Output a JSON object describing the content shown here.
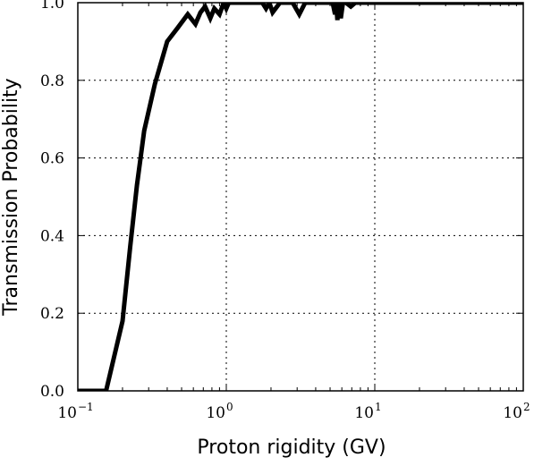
{
  "chart_data": {
    "type": "line",
    "title": "",
    "xlabel": "Proton rigidity (GV)",
    "ylabel": "Transmission Probability",
    "xscale": "log",
    "xlim": [
      0.1,
      100
    ],
    "ylim": [
      0.0,
      1.0
    ],
    "grid": true,
    "grid_style": "dotted",
    "line_color": "#000000",
    "x_ticks": [
      {
        "base": "10",
        "exp": "−1",
        "value": 0.1
      },
      {
        "base": "10",
        "exp": "0",
        "value": 1
      },
      {
        "base": "10",
        "exp": "1",
        "value": 10
      },
      {
        "base": "10",
        "exp": "2",
        "value": 100
      }
    ],
    "y_ticks": [
      "0.0",
      "0.2",
      "0.4",
      "0.6",
      "0.8",
      "1.0"
    ],
    "y_tick_values": [
      0.0,
      0.2,
      0.4,
      0.6,
      0.8,
      1.0
    ],
    "series": [
      {
        "x": [
          0.1,
          0.155,
          0.2,
          0.225,
          0.25,
          0.28,
          0.33,
          0.4,
          0.47,
          0.55,
          0.62,
          0.67,
          0.72,
          0.78,
          0.83,
          0.9,
          0.96,
          1.0,
          1.04,
          1.1,
          1.2,
          1.3,
          1.5,
          1.75,
          1.85,
          1.95,
          2.05,
          2.3,
          2.8,
          3.1,
          3.4,
          4.0,
          4.6,
          5.2,
          5.4,
          5.5,
          5.6,
          5.7,
          5.9,
          6.1,
          6.4,
          6.9,
          7.4,
          8.2,
          10,
          15,
          25,
          40,
          60,
          100
        ],
        "y": [
          0.0,
          0.0,
          0.18,
          0.37,
          0.53,
          0.67,
          0.79,
          0.9,
          0.935,
          0.97,
          0.945,
          0.975,
          0.99,
          0.96,
          0.985,
          0.97,
          1.0,
          0.985,
          1.0,
          1.0,
          1.0,
          1.0,
          1.0,
          1.0,
          0.985,
          1.0,
          0.975,
          1.0,
          1.0,
          0.97,
          1.0,
          1.0,
          1.0,
          1.0,
          0.97,
          1.0,
          0.955,
          1.0,
          0.96,
          1.0,
          1.0,
          0.99,
          1.0,
          1.0,
          1.0,
          1.0,
          1.0,
          1.0,
          1.0,
          1.0
        ]
      }
    ]
  }
}
